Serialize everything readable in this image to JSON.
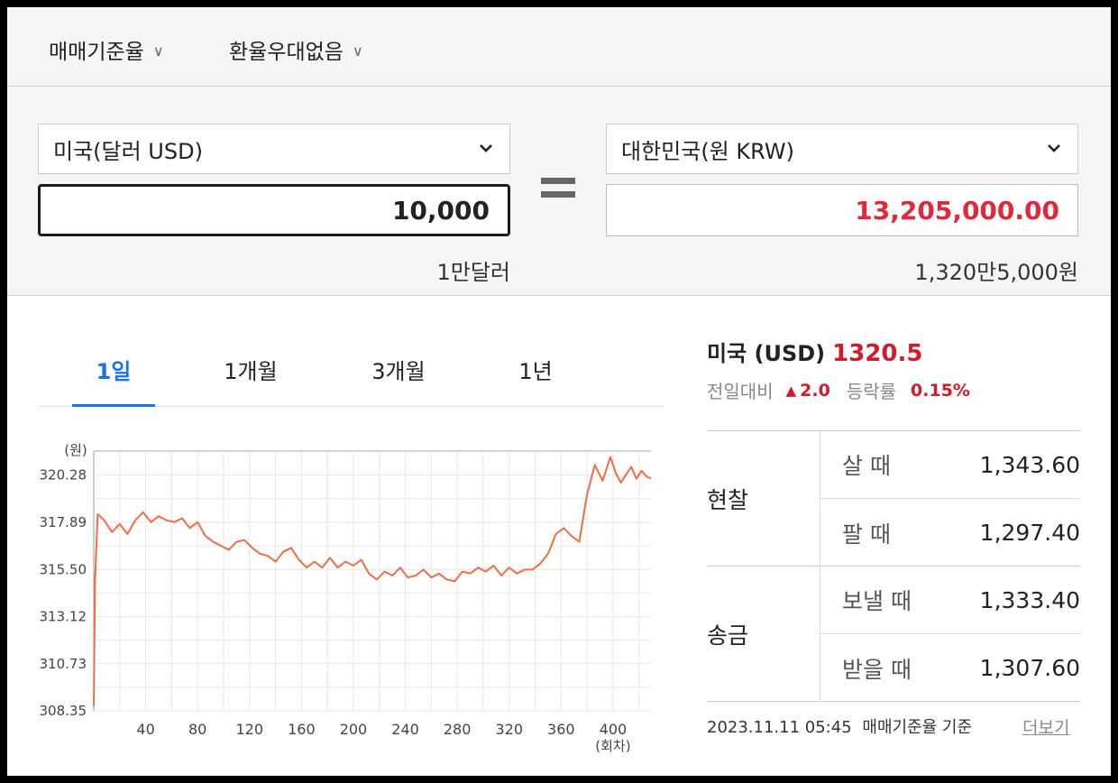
{
  "header": {
    "rate_type": "매매기준율",
    "preference": "환율우대없음",
    "chevron": "chevron-down-icon"
  },
  "converter": {
    "from_currency": "미국(달러 USD)",
    "to_currency": "대한민국(원 KRW)",
    "from_amount": "10,000",
    "to_amount": "13,205,000.00",
    "from_korean": "1만달러",
    "to_korean": "1,320만5,000원",
    "equals_icon": "equals-icon"
  },
  "tabs": [
    "1일",
    "1개월",
    "3개월",
    "1년"
  ],
  "info": {
    "title": "미국 (USD)",
    "rate": "1320.5",
    "change_label": "전일대비",
    "change_value": "2.0",
    "change_ratio_label": "등락률",
    "change_ratio": "0.15%",
    "up_color": "#d01c2a"
  },
  "rates": {
    "cash": {
      "label": "현찰",
      "buy_label": "살 때",
      "buy_value": "1,343.60",
      "sell_label": "팔 때",
      "sell_value": "1,297.40"
    },
    "remit": {
      "label": "송금",
      "send_label": "보낼 때",
      "send_value": "1,333.40",
      "receive_label": "받을 때",
      "receive_value": "1,307.60"
    }
  },
  "footer": {
    "timestamp": "2023.11.11 05:45",
    "basis": "매매기준율 기준",
    "more": "더보기"
  },
  "chart_data": {
    "type": "line",
    "ylabel": "(원)",
    "xlabel": "(회차)",
    "y_ticks": [
      "1320.28",
      "1317.89",
      "1315.50",
      "1313.12",
      "1310.73",
      "1308.35"
    ],
    "x_ticks": [
      "40",
      "80",
      "120",
      "160",
      "200",
      "240",
      "280",
      "320",
      "360",
      "400"
    ],
    "ylim": [
      1308.35,
      1321.5
    ],
    "xlim": [
      0,
      432
    ],
    "grid": true,
    "line_color": "#f06d45",
    "series": [
      {
        "x": [
          0,
          1,
          3,
          8,
          14,
          20,
          26,
          32,
          38,
          44,
          50,
          56,
          62,
          68,
          74,
          80,
          86,
          92,
          98,
          104,
          110,
          116,
          122,
          128,
          134,
          140,
          146,
          152,
          158,
          164,
          170,
          176,
          182,
          188,
          194,
          200,
          206,
          212,
          218,
          224,
          230,
          236,
          242,
          248,
          254,
          260,
          266,
          272,
          278,
          284,
          290,
          296,
          302,
          308,
          314,
          320,
          326,
          332,
          338,
          344,
          350,
          356,
          362,
          368,
          374,
          380,
          386,
          392,
          398,
          402,
          406,
          410,
          414,
          418,
          422,
          426,
          430
        ],
        "y": [
          1308.6,
          1314.9,
          1318.3,
          1318.0,
          1317.4,
          1317.8,
          1317.3,
          1318.0,
          1318.4,
          1317.9,
          1318.2,
          1318.0,
          1317.9,
          1318.1,
          1317.6,
          1317.9,
          1317.2,
          1316.9,
          1316.7,
          1316.5,
          1316.9,
          1317.0,
          1316.6,
          1316.3,
          1316.2,
          1315.9,
          1316.4,
          1316.6,
          1316.0,
          1315.6,
          1315.9,
          1315.6,
          1316.1,
          1315.6,
          1315.9,
          1315.7,
          1316.0,
          1315.3,
          1315.0,
          1315.4,
          1315.2,
          1315.6,
          1315.1,
          1315.2,
          1315.5,
          1315.1,
          1315.3,
          1315.0,
          1314.9,
          1315.4,
          1315.3,
          1315.6,
          1315.4,
          1315.7,
          1315.2,
          1315.6,
          1315.3,
          1315.5,
          1315.5,
          1315.8,
          1316.3,
          1317.3,
          1317.6,
          1317.2,
          1316.9,
          1319.3,
          1320.8,
          1320.0,
          1321.2,
          1320.4,
          1319.9,
          1320.3,
          1320.7,
          1320.1,
          1320.5,
          1320.2,
          1320.1
        ]
      }
    ]
  }
}
